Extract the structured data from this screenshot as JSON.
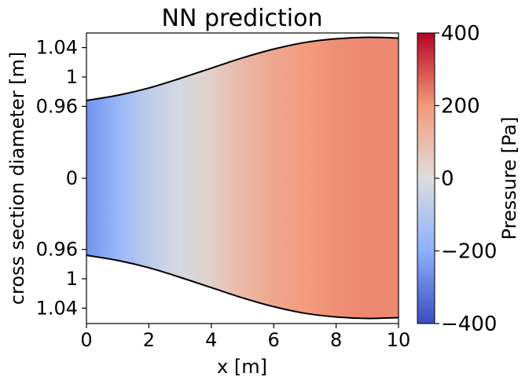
{
  "chart_data": {
    "type": "heatmap",
    "title": "NN prediction",
    "xlabel": "x [m]",
    "ylabel": "cross section diameter [m]",
    "xlim": [
      0,
      10
    ],
    "x_ticks": [
      {
        "value": 0,
        "label": "0"
      },
      {
        "value": 2,
        "label": "2"
      },
      {
        "value": 4,
        "label": "4"
      },
      {
        "value": 6,
        "label": "6"
      },
      {
        "value": 8,
        "label": "8"
      },
      {
        "value": 10,
        "label": "10"
      }
    ],
    "y_ticks": [
      {
        "value": 1.04,
        "label": "1.04"
      },
      {
        "value": 1.0,
        "label": "1"
      },
      {
        "value": 0.96,
        "label": "0.96"
      },
      {
        "value": 0,
        "label": "0"
      },
      {
        "value": -0.96,
        "label": "0.96"
      },
      {
        "value": -1.0,
        "label": "1"
      },
      {
        "value": -1.04,
        "label": "1.04"
      }
    ],
    "boundary": {
      "x": [
        0,
        1,
        2,
        3,
        4,
        5,
        6,
        7,
        8,
        9,
        10
      ],
      "radius": [
        0.968,
        0.975,
        0.985,
        0.998,
        1.012,
        1.026,
        1.038,
        1.047,
        1.052,
        1.054,
        1.053
      ]
    },
    "pressure_profile": {
      "x": [
        0,
        1,
        2,
        3,
        4,
        5,
        6,
        7,
        8,
        9,
        10
      ],
      "pressure": [
        -260,
        -170,
        -80,
        -20,
        40,
        110,
        160,
        195,
        215,
        225,
        222
      ]
    },
    "colorbar": {
      "label": "Pressure [Pa]",
      "range": [
        -400,
        400
      ],
      "colormap": "coolwarm",
      "ticks": [
        {
          "value": 400,
          "label": "400"
        },
        {
          "value": 200,
          "label": "200"
        },
        {
          "value": 0,
          "label": "0"
        },
        {
          "value": -200,
          "label": "−200"
        },
        {
          "value": -400,
          "label": "−400"
        }
      ]
    }
  }
}
